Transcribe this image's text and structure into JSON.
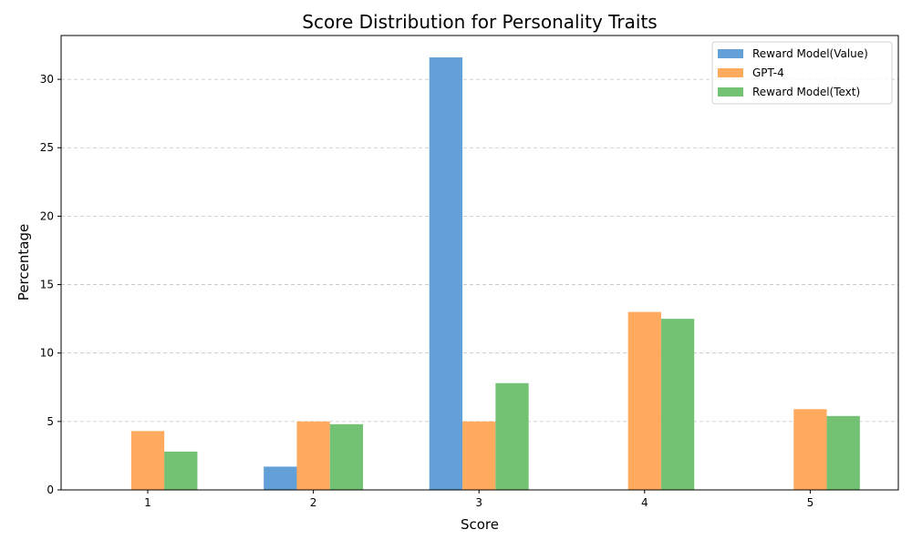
{
  "chart_data": {
    "type": "bar",
    "title": "Score Distribution for Personality Traits",
    "xlabel": "Score",
    "ylabel": "Percentage",
    "categories": [
      "1",
      "2",
      "3",
      "4",
      "5"
    ],
    "ylim": [
      0,
      33.2
    ],
    "yticks": [
      0,
      5,
      10,
      15,
      20,
      25,
      30
    ],
    "grid": "y-axis dashed",
    "legend_position": "top-right",
    "series": [
      {
        "name": "Reward Model(Value)",
        "color": "#5b9bd5",
        "values": [
          0,
          1.7,
          31.6,
          0,
          0
        ]
      },
      {
        "name": "GPT-4",
        "color": "#ffa556",
        "values": [
          4.3,
          5.0,
          5.0,
          13.0,
          5.9
        ]
      },
      {
        "name": "Reward Model(Text)",
        "color": "#6bbf6b",
        "values": [
          2.8,
          4.8,
          7.8,
          12.5,
          5.4
        ]
      }
    ]
  }
}
